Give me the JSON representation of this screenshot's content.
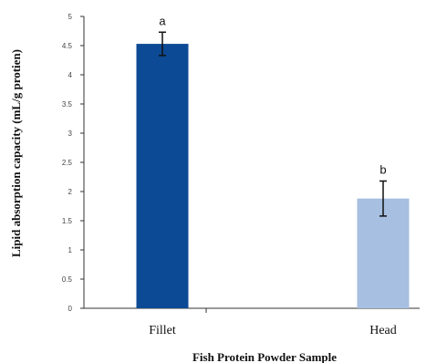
{
  "chart_data": {
    "type": "bar",
    "title": "",
    "xlabel": "Fish Protein Powder Sample",
    "ylabel": "Lipid absorption capacity (mL/g protien)",
    "categories": [
      "Fillet",
      "Head"
    ],
    "values": [
      4.53,
      1.88
    ],
    "errors": [
      0.2,
      0.3
    ],
    "annotations": [
      "a",
      "b"
    ],
    "colors": [
      "#0d4a96",
      "#a7bfe0"
    ],
    "ylim": [
      0,
      5
    ],
    "yticks": [
      "0",
      "0.5",
      "1",
      "1.5",
      "2",
      "2.5",
      "3",
      "3.5",
      "4",
      "4.5",
      "5"
    ],
    "grid": false,
    "legend": "none"
  }
}
